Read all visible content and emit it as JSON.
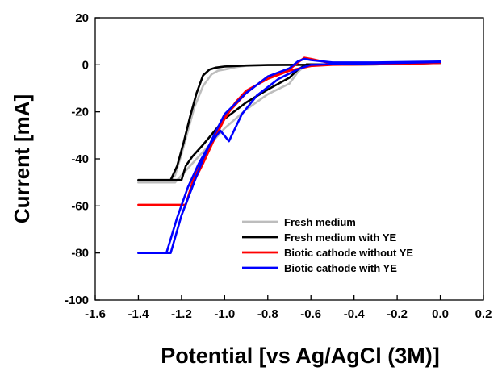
{
  "chart_data": {
    "type": "line",
    "title": "",
    "xlabel": "Potential [vs Ag/AgCl (3M)]",
    "ylabel": "Current [mA]",
    "xlim": [
      -1.6,
      0.2
    ],
    "ylim": [
      -100,
      20
    ],
    "xticks": [
      -1.6,
      -1.4,
      -1.2,
      -1.0,
      -0.8,
      -0.6,
      -0.4,
      -0.2,
      0.0,
      0.2
    ],
    "xtick_labels": [
      "-1.6",
      "-1.4",
      "-1.2",
      "-1.0",
      "-0.8",
      "-0.6",
      "-0.4",
      "-0.2",
      "0.0",
      "0.2"
    ],
    "yticks": [
      20,
      0,
      -20,
      -40,
      -60,
      -80,
      -100
    ],
    "ytick_labels": [
      "20",
      "0",
      "-20",
      "-40",
      "-60",
      "-80",
      "-100"
    ],
    "grid": false,
    "legend_position": "bottom-right",
    "series": [
      {
        "name": "Fresh medium",
        "color": "#bdbdbd",
        "x": [
          0.0,
          -0.2,
          -0.4,
          -0.55,
          -0.62,
          -0.66,
          -0.7,
          -0.8,
          -0.9,
          -1.0,
          -1.05,
          -1.1,
          -1.15,
          -1.2,
          -1.23,
          -1.26,
          -1.4,
          -1.26,
          -1.23,
          -1.2,
          -1.17,
          -1.14,
          -1.1,
          -1.06,
          -1.03,
          -1.0,
          -0.95,
          -0.9,
          -0.8,
          -0.7,
          -0.5,
          -0.2,
          0.0
        ],
        "y": [
          1.2,
          0.6,
          0.2,
          0.2,
          0.2,
          -3.0,
          -8.0,
          -12.5,
          -19.0,
          -27.0,
          -32.0,
          -37.0,
          -42.0,
          -47.0,
          -50.0,
          -50.0,
          -50.0,
          -50.0,
          -47.0,
          -38.0,
          -28.0,
          -18.0,
          -9.0,
          -4.0,
          -2.5,
          -2.0,
          -1.0,
          -0.4,
          -0.1,
          0.0,
          0.1,
          0.5,
          1.0
        ]
      },
      {
        "name": "Fresh medium with YE",
        "color": "#000000",
        "x": [
          0.0,
          -0.2,
          -0.4,
          -0.55,
          -0.62,
          -0.66,
          -0.7,
          -0.8,
          -0.9,
          -1.0,
          -1.05,
          -1.1,
          -1.15,
          -1.18,
          -1.2,
          -1.4,
          -1.25,
          -1.22,
          -1.19,
          -1.16,
          -1.13,
          -1.1,
          -1.07,
          -1.04,
          -1.0,
          -0.9,
          -0.8,
          -0.6,
          -0.3,
          0.0
        ],
        "y": [
          1.2,
          0.6,
          0.3,
          0.2,
          0.2,
          -2.0,
          -5.5,
          -10.5,
          -16.0,
          -23.0,
          -28.5,
          -34.0,
          -39.0,
          -43.0,
          -49.0,
          -49.0,
          -49.0,
          -43.0,
          -33.0,
          -22.0,
          -12.0,
          -4.5,
          -2.0,
          -1.2,
          -0.7,
          -0.3,
          -0.1,
          0.0,
          0.2,
          0.8
        ]
      },
      {
        "name": "Biotic cathode without YE",
        "color": "#ff0000",
        "x": [
          0.0,
          -0.3,
          -0.5,
          -0.6,
          -0.63,
          -0.66,
          -0.7,
          -0.8,
          -0.9,
          -1.0,
          -1.05,
          -1.1,
          -1.15,
          -1.18,
          -1.4,
          -1.18,
          -1.15,
          -1.1,
          -1.05,
          -1.0,
          -0.95,
          -0.9,
          -0.8,
          -0.7,
          -0.6,
          -0.5,
          -0.2,
          0.0
        ],
        "y": [
          0.8,
          0.5,
          0.5,
          2.5,
          3.0,
          1.0,
          -2.0,
          -5.0,
          -12.0,
          -22.0,
          -31.0,
          -40.0,
          -50.0,
          -59.5,
          -59.5,
          -59.5,
          -51.0,
          -42.0,
          -32.0,
          -23.0,
          -16.0,
          -11.0,
          -6.0,
          -2.5,
          -0.5,
          0.0,
          0.3,
          0.8
        ]
      },
      {
        "name": "Biotic cathode with YE",
        "color": "#0000ff",
        "x": [
          0.0,
          -0.3,
          -0.5,
          -0.6,
          -0.63,
          -0.66,
          -0.7,
          -0.8,
          -0.9,
          -1.0,
          -1.05,
          -1.1,
          -1.15,
          -1.2,
          -1.25,
          -1.4,
          -1.3,
          -1.27,
          -1.22,
          -1.17,
          -1.12,
          -1.07,
          -1.02,
          -0.98,
          -0.92,
          -0.85,
          -0.75,
          -0.65,
          -0.6,
          -0.5,
          -0.2,
          0.0
        ],
        "y": [
          1.4,
          1.0,
          1.0,
          2.0,
          2.5,
          1.5,
          -1.5,
          -5.0,
          -12.0,
          -21.0,
          -30.0,
          -40.0,
          -52.0,
          -64.0,
          -80.0,
          -80.0,
          -80.0,
          -80.0,
          -65.0,
          -52.0,
          -42.0,
          -34.0,
          -28.0,
          -32.5,
          -21.0,
          -13.0,
          -6.0,
          -1.5,
          0.0,
          0.3,
          0.8,
          1.2
        ]
      }
    ]
  }
}
